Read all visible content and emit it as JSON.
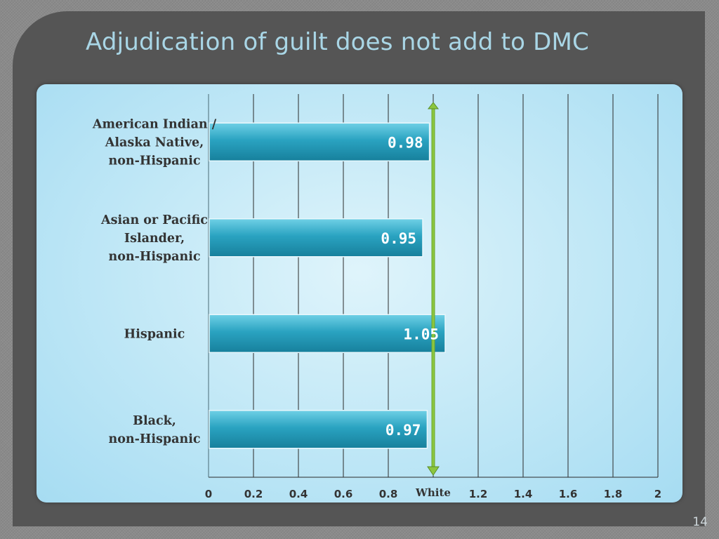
{
  "slide": {
    "title": "Adjudication of guilt does not add to DMC",
    "page_number": "14"
  },
  "colors": {
    "bar": "#2aa3c1",
    "reference_line": "#8cc63f",
    "title": "#a9d6e6"
  },
  "chart_data": {
    "type": "bar",
    "orientation": "horizontal",
    "categories": [
      [
        "American Indian /",
        "Alaska Native,",
        "non-Hispanic"
      ],
      [
        "Asian or Pacific",
        "Islander,",
        "non-Hispanic"
      ],
      [
        "Hispanic"
      ],
      [
        "Black,",
        "non-Hispanic"
      ]
    ],
    "values": [
      0.98,
      0.95,
      1.05,
      0.97
    ],
    "value_labels": [
      "0.98",
      "0.95",
      "1.05",
      "0.97"
    ],
    "xlim": [
      0,
      2
    ],
    "x_ticks": [
      {
        "value": 0,
        "label": "0"
      },
      {
        "value": 0.2,
        "label": "0.2"
      },
      {
        "value": 0.4,
        "label": "0.4"
      },
      {
        "value": 0.6,
        "label": "0.6"
      },
      {
        "value": 0.8,
        "label": "0.8"
      },
      {
        "value": 1.0,
        "label": "White"
      },
      {
        "value": 1.2,
        "label": "1.2"
      },
      {
        "value": 1.4,
        "label": "1.4"
      },
      {
        "value": 1.6,
        "label": "1.6"
      },
      {
        "value": 1.8,
        "label": "1.8"
      },
      {
        "value": 2,
        "label": "2"
      }
    ],
    "reference_line": {
      "value": 1.0,
      "label": "White"
    },
    "grid": true,
    "legend": "none"
  }
}
